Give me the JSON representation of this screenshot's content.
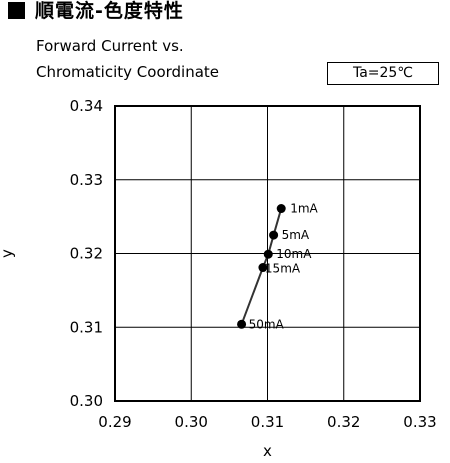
{
  "heading": {
    "icon": "black-square-icon",
    "title": "順電流-色度特性",
    "subtitle_line1": "Forward Current vs.",
    "subtitle_line2": "Chromaticity Coordinate"
  },
  "condition_box": "Ta=25℃",
  "chart_data": {
    "type": "scatter",
    "connected": true,
    "xlabel": "x",
    "ylabel": "y",
    "xlim": [
      0.29,
      0.33
    ],
    "ylim": [
      0.3,
      0.34
    ],
    "xticks": [
      "0.29",
      "0.30",
      "0.31",
      "0.32",
      "0.33"
    ],
    "yticks": [
      "0.30",
      "0.31",
      "0.32",
      "0.33",
      "0.34"
    ],
    "grid": true,
    "points": [
      {
        "label": "1mA",
        "x": 0.3118,
        "y": 0.3261
      },
      {
        "label": "5mA",
        "x": 0.3108,
        "y": 0.3225
      },
      {
        "label": "10mA",
        "x": 0.3101,
        "y": 0.3199
      },
      {
        "label": "15mA",
        "x": 0.3094,
        "y": 0.3181
      },
      {
        "label": "50mA",
        "x": 0.3066,
        "y": 0.3104
      }
    ],
    "line_color": "#333333",
    "marker_color": "#000000"
  }
}
